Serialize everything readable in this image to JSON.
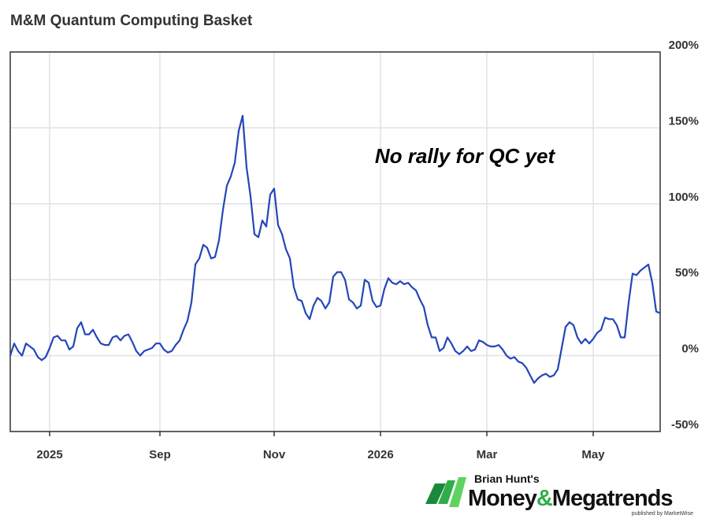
{
  "chart_data": {
    "type": "line",
    "title": "M&M Quantum Computing Basket",
    "annotation": "No rally for QC yet",
    "categories": [
      null,
      null,
      null,
      null,
      null,
      null,
      null,
      null,
      null,
      null,
      "2025",
      null,
      null,
      null,
      null,
      null,
      null,
      null,
      null,
      null,
      null,
      null,
      null,
      null,
      null,
      null,
      null,
      null,
      null,
      null,
      null,
      null,
      null,
      null,
      null,
      null,
      null,
      null,
      "Sep",
      null,
      null,
      null,
      null,
      null,
      null,
      null,
      null,
      null,
      null,
      null,
      null,
      null,
      null,
      null,
      null,
      null,
      null,
      null,
      null,
      null,
      null,
      null,
      null,
      null,
      null,
      null,
      null,
      "Nov",
      null,
      null,
      null,
      null,
      null,
      null,
      null,
      null,
      null,
      null,
      null,
      null,
      null,
      null,
      null,
      null,
      null,
      null,
      null,
      null,
      null,
      null,
      null,
      null,
      null,
      null,
      "2026",
      null,
      null,
      null,
      null,
      null,
      null,
      null,
      null,
      null,
      null,
      null,
      null,
      null,
      null,
      null,
      null,
      null,
      null,
      null,
      null,
      null,
      null,
      null,
      null,
      null,
      null,
      "Mar",
      null,
      null,
      null,
      null,
      null,
      null,
      null,
      null,
      null,
      null,
      null,
      null,
      null,
      null,
      null,
      null,
      null,
      null,
      null,
      null,
      null,
      null,
      null,
      null,
      null,
      null,
      "May",
      null,
      null,
      null,
      null,
      null,
      null,
      null,
      null,
      null,
      null,
      null,
      null,
      null,
      null,
      null,
      null,
      null
    ],
    "values": [
      0,
      8,
      3,
      0,
      8,
      6,
      4,
      -1,
      -3,
      -1,
      5,
      12,
      13,
      10,
      10,
      4,
      6,
      18,
      22,
      14,
      14,
      17,
      12,
      8,
      7,
      7,
      12,
      13,
      10,
      13,
      14,
      9,
      3,
      0,
      3,
      4,
      5,
      8,
      8,
      4,
      2,
      3,
      7,
      10,
      17,
      23,
      35,
      60,
      64,
      73,
      71,
      64,
      65,
      76,
      96,
      112,
      118,
      127,
      148,
      158,
      124,
      105,
      80,
      78,
      89,
      85,
      106,
      110,
      86,
      80,
      70,
      64,
      45,
      37,
      36,
      28,
      24,
      33,
      38,
      36,
      31,
      35,
      52,
      55,
      55,
      50,
      37,
      35,
      31,
      33,
      50,
      48,
      36,
      32,
      33,
      44,
      51,
      48,
      47,
      49,
      47,
      48,
      45,
      43,
      37,
      32,
      20,
      12,
      12,
      3,
      5,
      12,
      8,
      3,
      1,
      3,
      6,
      3,
      4,
      10,
      9,
      7,
      6,
      6,
      7,
      4,
      0,
      -2,
      -1,
      -4,
      -5,
      -8,
      -13,
      -18,
      -15,
      -13,
      -12,
      -14,
      -13,
      -9,
      5,
      19,
      22,
      20,
      12,
      8,
      11,
      8,
      11,
      15,
      17,
      25,
      24,
      24,
      20,
      12,
      12,
      35,
      54,
      53,
      56,
      58,
      60,
      48,
      29,
      28
    ],
    "color": "#2446b8",
    "ylim": [
      -50,
      200
    ],
    "yticks": [
      {
        "value": -50,
        "label": "-50%"
      },
      {
        "value": 0,
        "label": "0%"
      },
      {
        "value": 50,
        "label": "50%"
      },
      {
        "value": 100,
        "label": "100%"
      },
      {
        "value": 150,
        "label": "150%"
      },
      {
        "value": 200,
        "label": "200%"
      }
    ],
    "grid": true
  },
  "logo": {
    "byline": "Brian Hunt's",
    "name_a": "Money",
    "name_amp": "&",
    "name_b": "Megatrends",
    "publisher": "published by MarketWise"
  }
}
